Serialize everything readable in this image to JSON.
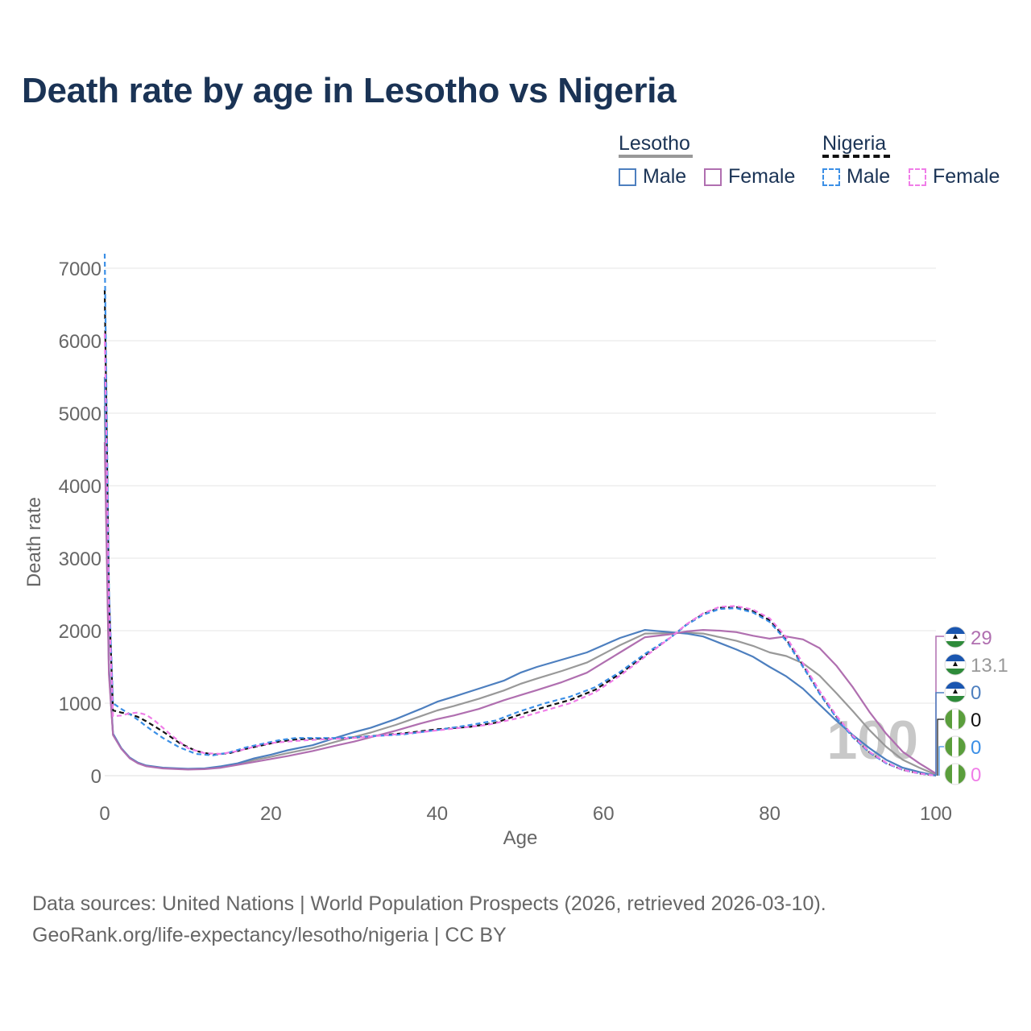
{
  "title": "Death rate by age in Lesotho vs Nigeria",
  "legend": {
    "groups": [
      {
        "name": "Lesotho",
        "items": [
          {
            "label": "Male",
            "color": "#4d7fbf",
            "dash": false
          },
          {
            "label": "Female",
            "color": "#b06fb0",
            "dash": false
          }
        ]
      },
      {
        "name": "Nigeria",
        "items": [
          {
            "label": "Male",
            "color": "#3b8fe6",
            "dash": true
          },
          {
            "label": "Female",
            "color": "#f07de8",
            "dash": true
          }
        ]
      }
    ]
  },
  "footer": {
    "line1": "Data sources: United Nations | World Population Prospects (2026, retrieved 2026-03-10).",
    "line2": "GeoRank.org/life-expectancy/lesotho/nigeria | CC BY"
  },
  "chart_data": {
    "type": "line",
    "title": "Death rate by age in Lesotho vs Nigeria",
    "xlabel": "Age",
    "ylabel": "Death rate",
    "xlim": [
      0,
      100
    ],
    "ylim": [
      0,
      7000
    ],
    "xticks": [
      0,
      20,
      40,
      60,
      80,
      100
    ],
    "yticks": [
      0,
      1000,
      2000,
      3000,
      4000,
      5000,
      6000,
      7000
    ],
    "grid": true,
    "watermark": "100",
    "series": [
      {
        "name": "Lesotho Male",
        "country": "Lesotho",
        "sex": "Male",
        "color": "#4d7fbf",
        "dash": false,
        "end_label": "0",
        "points": [
          [
            0,
            5500
          ],
          [
            0.5,
            1500
          ],
          [
            1,
            580
          ],
          [
            2,
            380
          ],
          [
            3,
            250
          ],
          [
            4,
            180
          ],
          [
            5,
            140
          ],
          [
            7,
            110
          ],
          [
            10,
            95
          ],
          [
            12,
            100
          ],
          [
            14,
            130
          ],
          [
            16,
            170
          ],
          [
            18,
            240
          ],
          [
            20,
            290
          ],
          [
            22,
            350
          ],
          [
            25,
            420
          ],
          [
            28,
            530
          ],
          [
            30,
            600
          ],
          [
            32,
            660
          ],
          [
            35,
            780
          ],
          [
            38,
            920
          ],
          [
            40,
            1020
          ],
          [
            42,
            1090
          ],
          [
            45,
            1200
          ],
          [
            48,
            1310
          ],
          [
            50,
            1420
          ],
          [
            52,
            1500
          ],
          [
            55,
            1600
          ],
          [
            58,
            1700
          ],
          [
            60,
            1800
          ],
          [
            62,
            1900
          ],
          [
            65,
            2010
          ],
          [
            68,
            1980
          ],
          [
            70,
            1960
          ],
          [
            72,
            1920
          ],
          [
            74,
            1830
          ],
          [
            76,
            1740
          ],
          [
            78,
            1640
          ],
          [
            80,
            1500
          ],
          [
            82,
            1370
          ],
          [
            84,
            1200
          ],
          [
            86,
            980
          ],
          [
            88,
            760
          ],
          [
            90,
            560
          ],
          [
            92,
            380
          ],
          [
            94,
            220
          ],
          [
            96,
            110
          ],
          [
            98,
            50
          ],
          [
            100,
            0
          ]
        ]
      },
      {
        "name": "Lesotho Female",
        "country": "Lesotho",
        "sex": "Female",
        "color": "#b06fb0",
        "dash": false,
        "end_label": "29",
        "points": [
          [
            0,
            4600
          ],
          [
            0.5,
            1400
          ],
          [
            1,
            560
          ],
          [
            2,
            370
          ],
          [
            3,
            240
          ],
          [
            4,
            170
          ],
          [
            5,
            130
          ],
          [
            7,
            100
          ],
          [
            10,
            85
          ],
          [
            12,
            90
          ],
          [
            14,
            110
          ],
          [
            16,
            150
          ],
          [
            18,
            190
          ],
          [
            20,
            230
          ],
          [
            22,
            270
          ],
          [
            25,
            340
          ],
          [
            28,
            420
          ],
          [
            30,
            470
          ],
          [
            32,
            530
          ],
          [
            35,
            620
          ],
          [
            38,
            720
          ],
          [
            40,
            780
          ],
          [
            42,
            830
          ],
          [
            45,
            920
          ],
          [
            48,
            1040
          ],
          [
            50,
            1110
          ],
          [
            52,
            1180
          ],
          [
            55,
            1290
          ],
          [
            58,
            1420
          ],
          [
            60,
            1560
          ],
          [
            62,
            1700
          ],
          [
            65,
            1910
          ],
          [
            68,
            1950
          ],
          [
            70,
            1990
          ],
          [
            72,
            2010
          ],
          [
            74,
            2000
          ],
          [
            76,
            1980
          ],
          [
            78,
            1930
          ],
          [
            80,
            1890
          ],
          [
            82,
            1920
          ],
          [
            84,
            1880
          ],
          [
            86,
            1760
          ],
          [
            88,
            1520
          ],
          [
            90,
            1220
          ],
          [
            92,
            880
          ],
          [
            94,
            580
          ],
          [
            96,
            330
          ],
          [
            98,
            170
          ],
          [
            99,
            100
          ],
          [
            100,
            29
          ]
        ]
      },
      {
        "name": "Nigeria Male",
        "country": "Nigeria",
        "sex": "Male",
        "color": "#3b8fe6",
        "dash": true,
        "end_label": "0",
        "points": [
          [
            0,
            7200
          ],
          [
            0.5,
            2600
          ],
          [
            1,
            1000
          ],
          [
            2,
            920
          ],
          [
            3,
            850
          ],
          [
            4,
            770
          ],
          [
            5,
            680
          ],
          [
            7,
            520
          ],
          [
            9,
            390
          ],
          [
            11,
            300
          ],
          [
            13,
            280
          ],
          [
            15,
            320
          ],
          [
            17,
            390
          ],
          [
            19,
            440
          ],
          [
            21,
            490
          ],
          [
            23,
            520
          ],
          [
            25,
            520
          ],
          [
            28,
            520
          ],
          [
            30,
            530
          ],
          [
            33,
            550
          ],
          [
            36,
            570
          ],
          [
            40,
            630
          ],
          [
            44,
            700
          ],
          [
            47,
            760
          ],
          [
            50,
            890
          ],
          [
            53,
            1000
          ],
          [
            56,
            1090
          ],
          [
            59,
            1220
          ],
          [
            62,
            1430
          ],
          [
            65,
            1680
          ],
          [
            68,
            1900
          ],
          [
            70,
            2080
          ],
          [
            72,
            2220
          ],
          [
            74,
            2300
          ],
          [
            76,
            2310
          ],
          [
            78,
            2250
          ],
          [
            80,
            2120
          ],
          [
            82,
            1860
          ],
          [
            84,
            1500
          ],
          [
            86,
            1130
          ],
          [
            88,
            800
          ],
          [
            90,
            530
          ],
          [
            92,
            320
          ],
          [
            94,
            170
          ],
          [
            96,
            80
          ],
          [
            98,
            30
          ],
          [
            100,
            0
          ]
        ]
      },
      {
        "name": "Nigeria Female",
        "country": "Nigeria",
        "sex": "Female",
        "color": "#f07de8",
        "dash": true,
        "end_label": "0",
        "points": [
          [
            0,
            6100
          ],
          [
            0.5,
            2400
          ],
          [
            1,
            820
          ],
          [
            2,
            830
          ],
          [
            3,
            860
          ],
          [
            4,
            870
          ],
          [
            5,
            840
          ],
          [
            6,
            760
          ],
          [
            8,
            560
          ],
          [
            10,
            380
          ],
          [
            12,
            310
          ],
          [
            14,
            300
          ],
          [
            16,
            340
          ],
          [
            18,
            400
          ],
          [
            20,
            450
          ],
          [
            23,
            480
          ],
          [
            26,
            500
          ],
          [
            30,
            520
          ],
          [
            34,
            560
          ],
          [
            38,
            600
          ],
          [
            42,
            650
          ],
          [
            46,
            700
          ],
          [
            50,
            800
          ],
          [
            53,
            900
          ],
          [
            56,
            1000
          ],
          [
            59,
            1150
          ],
          [
            62,
            1380
          ],
          [
            65,
            1640
          ],
          [
            68,
            1900
          ],
          [
            70,
            2090
          ],
          [
            72,
            2240
          ],
          [
            74,
            2330
          ],
          [
            76,
            2340
          ],
          [
            78,
            2290
          ],
          [
            80,
            2170
          ],
          [
            82,
            1910
          ],
          [
            84,
            1550
          ],
          [
            86,
            1170
          ],
          [
            88,
            830
          ],
          [
            90,
            550
          ],
          [
            92,
            330
          ],
          [
            94,
            180
          ],
          [
            96,
            80
          ],
          [
            98,
            30
          ],
          [
            100,
            0
          ]
        ]
      },
      {
        "name": "Lesotho",
        "country": "Lesotho",
        "sex": "Total",
        "color": "#999999",
        "dash": false,
        "end_label": "13.1",
        "points": [
          [
            0,
            5100
          ],
          [
            0.5,
            1450
          ],
          [
            1,
            570
          ],
          [
            2,
            375
          ],
          [
            3,
            245
          ],
          [
            4,
            175
          ],
          [
            5,
            135
          ],
          [
            7,
            105
          ],
          [
            10,
            90
          ],
          [
            12,
            95
          ],
          [
            14,
            120
          ],
          [
            16,
            160
          ],
          [
            18,
            215
          ],
          [
            20,
            260
          ],
          [
            22,
            310
          ],
          [
            25,
            380
          ],
          [
            28,
            475
          ],
          [
            30,
            535
          ],
          [
            32,
            595
          ],
          [
            35,
            700
          ],
          [
            38,
            820
          ],
          [
            40,
            900
          ],
          [
            42,
            960
          ],
          [
            45,
            1060
          ],
          [
            48,
            1175
          ],
          [
            50,
            1265
          ],
          [
            52,
            1340
          ],
          [
            55,
            1445
          ],
          [
            58,
            1560
          ],
          [
            60,
            1680
          ],
          [
            62,
            1800
          ],
          [
            65,
            1960
          ],
          [
            68,
            1965
          ],
          [
            70,
            1975
          ],
          [
            72,
            1960
          ],
          [
            74,
            1910
          ],
          [
            76,
            1860
          ],
          [
            78,
            1790
          ],
          [
            80,
            1700
          ],
          [
            82,
            1650
          ],
          [
            84,
            1550
          ],
          [
            86,
            1380
          ],
          [
            88,
            1140
          ],
          [
            90,
            890
          ],
          [
            92,
            630
          ],
          [
            94,
            400
          ],
          [
            96,
            220
          ],
          [
            98,
            110
          ],
          [
            100,
            13
          ]
        ]
      },
      {
        "name": "Nigeria",
        "country": "Nigeria",
        "sex": "Total",
        "color": "#111111",
        "dash": true,
        "end_label": "0",
        "points": [
          [
            0,
            6700
          ],
          [
            0.5,
            2500
          ],
          [
            1,
            900
          ],
          [
            2,
            870
          ],
          [
            3,
            850
          ],
          [
            4,
            810
          ],
          [
            5,
            750
          ],
          [
            7,
            610
          ],
          [
            9,
            450
          ],
          [
            11,
            340
          ],
          [
            13,
            290
          ],
          [
            15,
            310
          ],
          [
            17,
            370
          ],
          [
            19,
            420
          ],
          [
            21,
            470
          ],
          [
            23,
            500
          ],
          [
            25,
            510
          ],
          [
            28,
            515
          ],
          [
            30,
            525
          ],
          [
            33,
            555
          ],
          [
            36,
            585
          ],
          [
            40,
            640
          ],
          [
            44,
            675
          ],
          [
            47,
            730
          ],
          [
            50,
            845
          ],
          [
            53,
            950
          ],
          [
            56,
            1045
          ],
          [
            59,
            1185
          ],
          [
            62,
            1405
          ],
          [
            65,
            1660
          ],
          [
            68,
            1900
          ],
          [
            70,
            2085
          ],
          [
            72,
            2230
          ],
          [
            74,
            2315
          ],
          [
            76,
            2325
          ],
          [
            78,
            2270
          ],
          [
            80,
            2145
          ],
          [
            82,
            1885
          ],
          [
            84,
            1525
          ],
          [
            86,
            1150
          ],
          [
            88,
            815
          ],
          [
            90,
            540
          ],
          [
            92,
            325
          ],
          [
            94,
            175
          ],
          [
            96,
            80
          ],
          [
            98,
            30
          ],
          [
            100,
            0
          ]
        ]
      }
    ],
    "end_markers": [
      {
        "flag": "lesotho",
        "label": "29",
        "color": "#b06fb0",
        "value": 29
      },
      {
        "flag": "lesotho",
        "label": "13.1",
        "color": "#999999",
        "value": 13.1
      },
      {
        "flag": "lesotho",
        "label": "0",
        "color": "#4d7fbf",
        "value": 0
      },
      {
        "flag": "nigeria",
        "label": "0",
        "color": "#111111",
        "value": 0
      },
      {
        "flag": "nigeria",
        "label": "0",
        "color": "#3b8fe6",
        "value": 0
      },
      {
        "flag": "nigeria",
        "label": "0",
        "color": "#f07de8",
        "value": 0
      }
    ]
  }
}
